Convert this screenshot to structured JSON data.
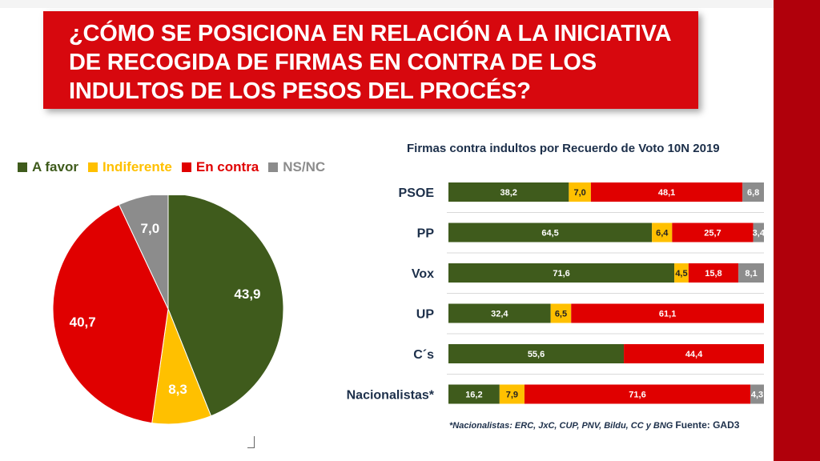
{
  "header": {
    "title": "¿CÓMO SE POSICIONA EN RELACIÓN A LA INICIATIVA\nDE RECOGIDA DE FIRMAS EN CONTRA DE LOS\nINDULTOS DE LOS PESOS DEL PROCÉS?"
  },
  "colors": {
    "favor": "#3f5b1c",
    "indiferente": "#ffc000",
    "contra": "#e00000",
    "nsnc": "#8c8c8c",
    "brand": "#d7080e"
  },
  "legend": [
    {
      "label": "A favor",
      "color": "#3f5b1c"
    },
    {
      "label": "Indiferente",
      "color": "#ffc000"
    },
    {
      "label": "En contra",
      "color": "#e00000"
    },
    {
      "label": "NS/NC",
      "color": "#8c8c8c"
    }
  ],
  "chart_data": [
    {
      "type": "pie",
      "slices": [
        {
          "name": "A favor",
          "value": 43.9,
          "label": "43,9",
          "color": "#3f5b1c"
        },
        {
          "name": "Indiferente",
          "value": 8.3,
          "label": "8,3",
          "color": "#ffc000"
        },
        {
          "name": "En contra",
          "value": 40.7,
          "label": "40,7",
          "color": "#e00000"
        },
        {
          "name": "NS/NC",
          "value": 7.0,
          "label": "7,0",
          "color": "#8c8c8c"
        }
      ]
    },
    {
      "type": "bar",
      "orientation": "horizontal",
      "stacked": true,
      "title": "Firmas contra indultos por Recuerdo de Voto 10N 2019",
      "categories": [
        "PSOE",
        "PP",
        "Vox",
        "UP",
        "C´s",
        "Nacionalistas*"
      ],
      "series": [
        {
          "name": "A favor",
          "color": "#3f5b1c",
          "values": [
            38.2,
            64.5,
            71.6,
            32.4,
            55.6,
            16.2
          ],
          "labels": [
            "38,2",
            "64,5",
            "71,6",
            "32,4",
            "55,6",
            "16,2"
          ]
        },
        {
          "name": "Indiferente",
          "color": "#ffc000",
          "values": [
            7.0,
            6.4,
            4.5,
            6.5,
            0,
            7.9
          ],
          "labels": [
            "7,0",
            "6,4",
            "4,5",
            "6,5",
            "",
            "7,9"
          ]
        },
        {
          "name": "En contra",
          "color": "#e00000",
          "values": [
            48.1,
            25.7,
            15.8,
            61.1,
            44.4,
            71.6
          ],
          "labels": [
            "48,1",
            "25,7",
            "15,8",
            "61,1",
            "44,4",
            "71,6"
          ]
        },
        {
          "name": "NS/NC",
          "color": "#8c8c8c",
          "values": [
            6.8,
            3.4,
            8.1,
            0,
            0,
            4.3
          ],
          "labels": [
            "6,8",
            "3,4",
            "8,1",
            "",
            "",
            "4,3"
          ]
        }
      ]
    }
  ],
  "footnote": {
    "text": "*Nacionalistas: ERC, JxC, CUP, PNV, Bildu, CC y BNG",
    "source": "Fuente: GAD3"
  }
}
